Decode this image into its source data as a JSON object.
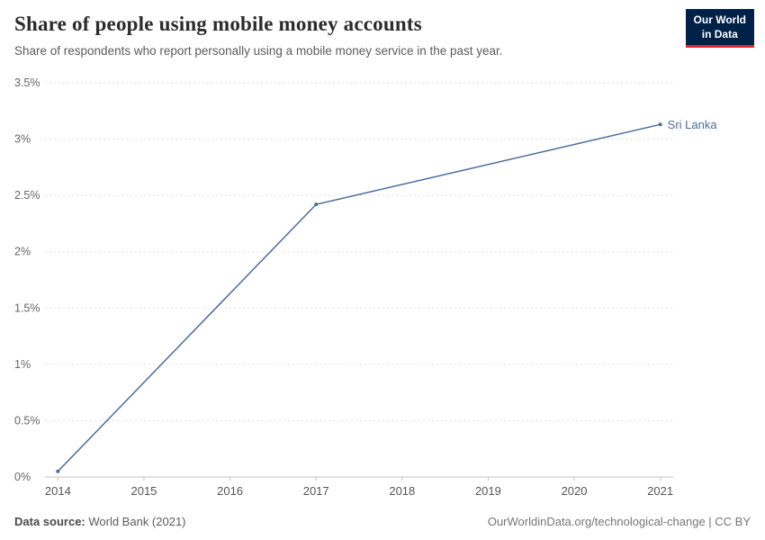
{
  "header": {
    "title": "Share of people using mobile money accounts",
    "subtitle": "Share of respondents who report personally using a mobile money service in the past year.",
    "logo": {
      "line1": "Our World",
      "line2": "in Data",
      "bg": "#002147",
      "accent": "#e0262c"
    }
  },
  "footer": {
    "source_label": "Data source:",
    "source_value": " World Bank (2021)",
    "credit": "OurWorldinData.org/technological-change | CC BY"
  },
  "chart_data": {
    "type": "line",
    "title": "Share of people using mobile money accounts",
    "xlabel": "",
    "ylabel": "",
    "xlim": [
      2013.85,
      2021.15
    ],
    "ylim": [
      0,
      3.5
    ],
    "grid": true,
    "xticks": [
      2014,
      2015,
      2016,
      2017,
      2018,
      2019,
      2020,
      2021
    ],
    "yticks": [
      0,
      0.5,
      1,
      1.5,
      2,
      2.5,
      3,
      3.5
    ],
    "ytick_labels": [
      "0%",
      "0.5%",
      "1%",
      "1.5%",
      "2%",
      "2.5%",
      "3%",
      "3.5%"
    ],
    "series": [
      {
        "name": "Sri Lanka",
        "color": "#4c6a9c",
        "x": [
          2014,
          2017,
          2021
        ],
        "values": [
          0.05,
          2.42,
          3.13
        ]
      }
    ]
  }
}
